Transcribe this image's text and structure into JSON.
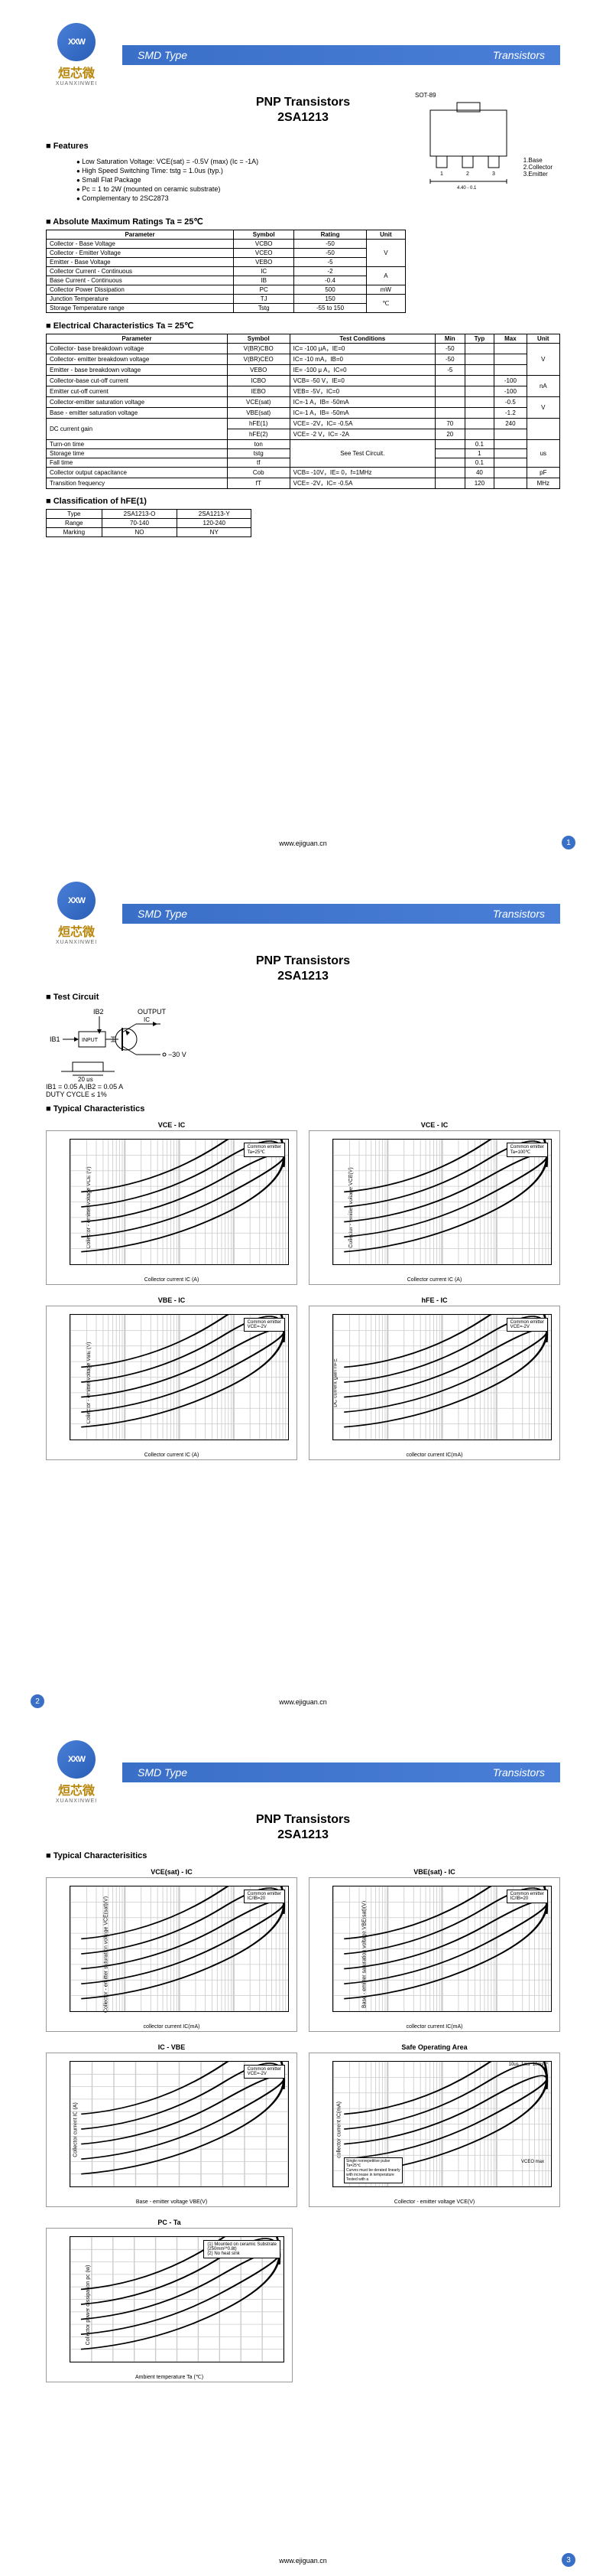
{
  "brand": {
    "logo_initials": "XXW",
    "cn_name": "烜芯微",
    "pinyin": "XUANXINWEI"
  },
  "header": {
    "left": "SMD Type",
    "right": "Transistors"
  },
  "title": {
    "line1": "PNP  Transistors",
    "line2": "2SA1213"
  },
  "footer_url": "www.ejiguan.cn",
  "page_nums": [
    "1",
    "2",
    "3"
  ],
  "sections": {
    "features": "Features",
    "abs_max": "Absolute Maximum Ratings Ta = 25℃",
    "elec": "Electrical Characteristics Ta = 25℃",
    "class": "Classification of hFE(1)",
    "test": "Test Circuit",
    "typical": "Typical  Characteristics",
    "typical2": "Typical  Characterisitics"
  },
  "features": [
    "Low Saturation Voltage: VCE(sat) = -0.5V (max) (Ic = -1A)",
    "High Speed Switching Time: tstg = 1.0us (typ.)",
    "Small Flat Package",
    "Pc = 1 to 2W (mounted on ceramic substrate)",
    "Complementary to 2SC2873"
  ],
  "package": {
    "name": "SOT-89",
    "pins": [
      "1.Base",
      "2.Collector",
      "3.Emitter"
    ]
  },
  "abs_max": {
    "headers": [
      "Parameter",
      "Symbol",
      "Rating",
      "Unit"
    ],
    "rows": [
      [
        "Collector - Base Voltage",
        "VCBO",
        "-50",
        "V"
      ],
      [
        "Collector - Emitter Voltage",
        "VCEO",
        "-50",
        ""
      ],
      [
        "Emitter - Base Voltage",
        "VEBO",
        "-5",
        ""
      ],
      [
        "Collector Current - Continuous",
        "IC",
        "-2",
        "A"
      ],
      [
        "Base Current  - Continuous",
        "IB",
        "-0.4",
        ""
      ],
      [
        "Collector Power Dissipation",
        "PC",
        "500",
        "mW"
      ],
      [
        "Junction Temperature",
        "TJ",
        "150",
        "℃"
      ],
      [
        "Storage Temperature range",
        "Tstg",
        "-55 to 150",
        ""
      ]
    ],
    "unit_spans": [
      3,
      0,
      0,
      2,
      0,
      1,
      2,
      0
    ]
  },
  "elec": {
    "headers": [
      "Parameter",
      "Symbol",
      "Test Conditions",
      "Min",
      "Typ",
      "Max",
      "Unit"
    ],
    "rows": [
      [
        "Collector- base breakdown voltage",
        "V(BR)CBO",
        "IC= -100 μA，IE=0",
        "-50",
        "",
        "",
        "V"
      ],
      [
        "Collector- emitter breakdown voltage",
        "V(BR)CEO",
        "IC= -10 mA，IB=0",
        "-50",
        "",
        "",
        ""
      ],
      [
        "Emitter - base breakdown voltage",
        "VEBO",
        "IE= -100 μ A，IC=0",
        "-5",
        "",
        "",
        ""
      ],
      [
        "Collector-base cut-off current",
        "ICBO",
        "VCB= -50 V，IE=0",
        "",
        "",
        "-100",
        "nA"
      ],
      [
        "Emitter cut-off current",
        "IEBO",
        "VEB= -5V，IC=0",
        "",
        "",
        "-100",
        ""
      ],
      [
        "Collector-emitter saturation voltage",
        "VCE(sat)",
        "IC=-1 A，IB= -50mA",
        "",
        "",
        "-0.5",
        "V"
      ],
      [
        "Base - emitter saturation voltage",
        "VBE(sat)",
        "IC=-1 A，IB= -50mA",
        "",
        "",
        "-1.2",
        ""
      ],
      [
        "DC current gain",
        "hFE(1)",
        "VCE= -2V，IC= -0.5A",
        "70",
        "",
        "240",
        ""
      ],
      [
        "",
        "hFE(2)",
        "VCE= -2 V，IC= -2A",
        "20",
        "",
        "",
        ""
      ],
      [
        "Turn-on  time",
        "ton",
        "See Test Circuit.",
        "",
        "0.1",
        "",
        "us"
      ],
      [
        "Storage  time",
        "tstg",
        "",
        "",
        "1",
        "",
        ""
      ],
      [
        "Fall time",
        "tf",
        "",
        "",
        "0.1",
        "",
        ""
      ],
      [
        "Collector output capacitance",
        "Cob",
        "VCB= -10V，IE= 0，f=1MHz",
        "",
        "40",
        "",
        "pF"
      ],
      [
        "Transition frequency",
        "fT",
        "VCE= -2V，IC= -0.5A",
        "",
        "120",
        "",
        "MHz"
      ]
    ]
  },
  "class": {
    "rows": [
      [
        "Type",
        "2SA1213-O",
        "2SA1213-Y"
      ],
      [
        "Range",
        "70-140",
        "120-240"
      ],
      [
        "Marking",
        "NO",
        "NY"
      ]
    ]
  },
  "test_circuit": {
    "labels": {
      "ib1": "IB1",
      "ib2": "IB2",
      "input": "INPUT",
      "output": "OUTPUT",
      "ic": "IC",
      "v": "−30 V",
      "pulse": "20 μs"
    },
    "note": "IB1 = 0.05 A,IB2 = 0.05 A\nDUTY CYCLE ≤ 1%"
  },
  "charts_p2": [
    {
      "title": "VCE - IC",
      "xlabel": "Collector current  IC (A)",
      "ylabel": "Collector - emitter voltage VCE (V)",
      "legend": "Common emitter\nTa=25℃",
      "xscale": "log"
    },
    {
      "title": "VCE - IC",
      "xlabel": "Collector current  IC (A)",
      "ylabel": "Collector - emitter voltage VCE(V)",
      "legend": "Common emitter\nTa=100℃",
      "xscale": "log"
    },
    {
      "title": "VBE - IC",
      "xlabel": "Collector current  IC (A)",
      "ylabel": "Collector - emitter voltage VBE (V)",
      "legend": "Common emitter\nVCE=-2V",
      "xscale": "log"
    },
    {
      "title": "hFE - IC",
      "xlabel": "collector current IC(mA)",
      "ylabel": "DC current gain hFE",
      "legend": "Common emitter\nVCE=-2V",
      "xscale": "log"
    }
  ],
  "charts_p3": [
    {
      "title": "VCE(sat) - IC",
      "xlabel": "collector current IC(mA)",
      "ylabel": "Collector - emitter saturation voltage\nVCE(sat)(V)",
      "legend": "Common emitter\nIC/IB=20",
      "xscale": "log"
    },
    {
      "title": "VBE(sat) - IC",
      "xlabel": "collector current IC(mA)",
      "ylabel": "Base - emitter saturation voltage\nVBE(sat)(V)",
      "legend": "Common emitter\nIC/IB=20",
      "xscale": "log"
    },
    {
      "title": "IC - VBE",
      "xlabel": "Base - emitter voltage VBE(V)",
      "ylabel": "Collector current IC (A)",
      "legend": "Common emitter\nVCE=-2V",
      "xscale": "linear"
    },
    {
      "title": "Safe Operating Area",
      "xlabel": "Collector - emitter voltage VCE(V)",
      "ylabel": "collector current IC(mA)",
      "legend": "",
      "xscale": "log",
      "soa_notes": "Single nonrepetitive pulse\nTa=25℃\nCurves must be derated linearly\nwith increase in temperature\nTested with a",
      "soa_times": [
        "10us",
        "1ms",
        "10ms",
        "*"
      ],
      "soa_extra": [
        "PC(DC) max line",
        "VCEO max"
      ]
    },
    {
      "title": "PC - Ta",
      "xlabel": "Ambient temperature Ta (℃)",
      "ylabel": "Collector power dissipation  pc  (w)",
      "legend": "(1)  Mounted on ceramic Substrate\n      (250mm²*0.8t)\n(2)  No heat sink",
      "xscale": "linear"
    }
  ]
}
